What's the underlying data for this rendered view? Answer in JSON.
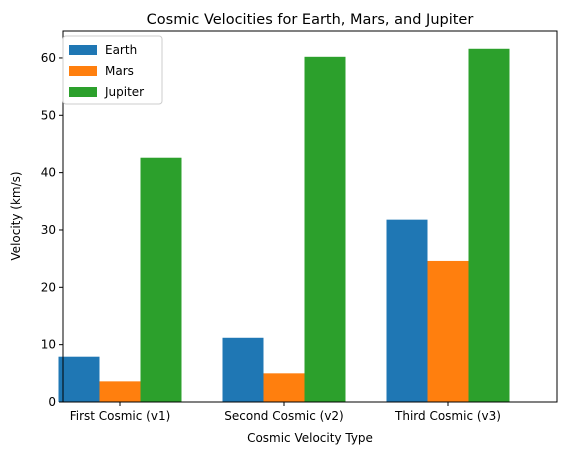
{
  "chart_data": {
    "type": "bar",
    "title": "Cosmic Velocities for Earth, Mars, and Jupiter",
    "xlabel": "Cosmic Velocity Type",
    "ylabel": "Velocity (km/s)",
    "categories": [
      "First Cosmic (v1)",
      "Second Cosmic (v2)",
      "Third Cosmic (v3)"
    ],
    "series": [
      {
        "name": "Earth",
        "color": "#1f77b4",
        "values": [
          7.9,
          11.2,
          31.8
        ]
      },
      {
        "name": "Mars",
        "color": "#ff7f0e",
        "values": [
          3.6,
          5.0,
          24.6
        ]
      },
      {
        "name": "Jupiter",
        "color": "#2ca02c",
        "values": [
          42.6,
          60.2,
          61.6
        ]
      }
    ],
    "ylim": [
      0,
      64.7
    ],
    "yticks": [
      0,
      10,
      20,
      30,
      40,
      50,
      60
    ],
    "grid": false,
    "legend_position": "top-left"
  }
}
